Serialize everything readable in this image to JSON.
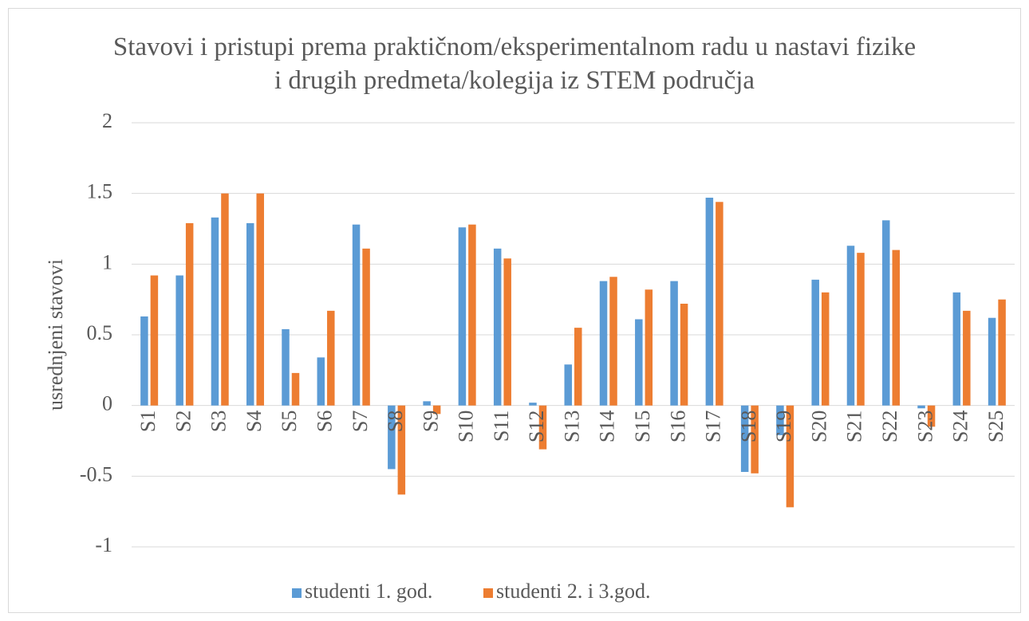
{
  "chart_data": {
    "type": "bar",
    "title": "Stavovi i pristupi prema praktičnom/eksperimentalnom radu u nastavi fizike i drugih predmeta/kolegija iz STEM područja",
    "y_label": "usrednjeni stavovi",
    "categories": [
      "S1",
      "S2",
      "S3",
      "S4",
      "S5",
      "S6",
      "S7",
      "S8",
      "S9",
      "S10",
      "S11",
      "S12",
      "S13",
      "S14",
      "S15",
      "S16",
      "S17",
      "S18",
      "S19",
      "S20",
      "S21",
      "S22",
      "S23",
      "S24",
      "S25"
    ],
    "series": [
      {
        "name": "studenti 1. god.",
        "color": "#5b9bd5",
        "values": [
          0.63,
          0.92,
          1.33,
          1.29,
          0.54,
          0.34,
          1.28,
          -0.45,
          0.03,
          1.26,
          1.11,
          0.02,
          0.29,
          0.88,
          0.61,
          0.88,
          1.47,
          -0.47,
          -0.21,
          0.89,
          1.13,
          1.31,
          -0.02,
          0.8,
          0.62
        ]
      },
      {
        "name": "studenti 2. i 3.god.",
        "color": "#ed7d31",
        "values": [
          0.92,
          1.29,
          1.5,
          1.5,
          0.23,
          0.67,
          1.11,
          -0.63,
          -0.06,
          1.28,
          1.04,
          -0.31,
          0.55,
          0.91,
          0.82,
          0.72,
          1.44,
          -0.48,
          -0.72,
          0.8,
          1.08,
          1.1,
          -0.15,
          0.67,
          0.75
        ]
      }
    ],
    "ylim": [
      -1,
      2
    ],
    "yticks": [
      -1,
      -0.5,
      0,
      0.5,
      1,
      1.5,
      2
    ],
    "grid": true,
    "legend": "bottom"
  }
}
